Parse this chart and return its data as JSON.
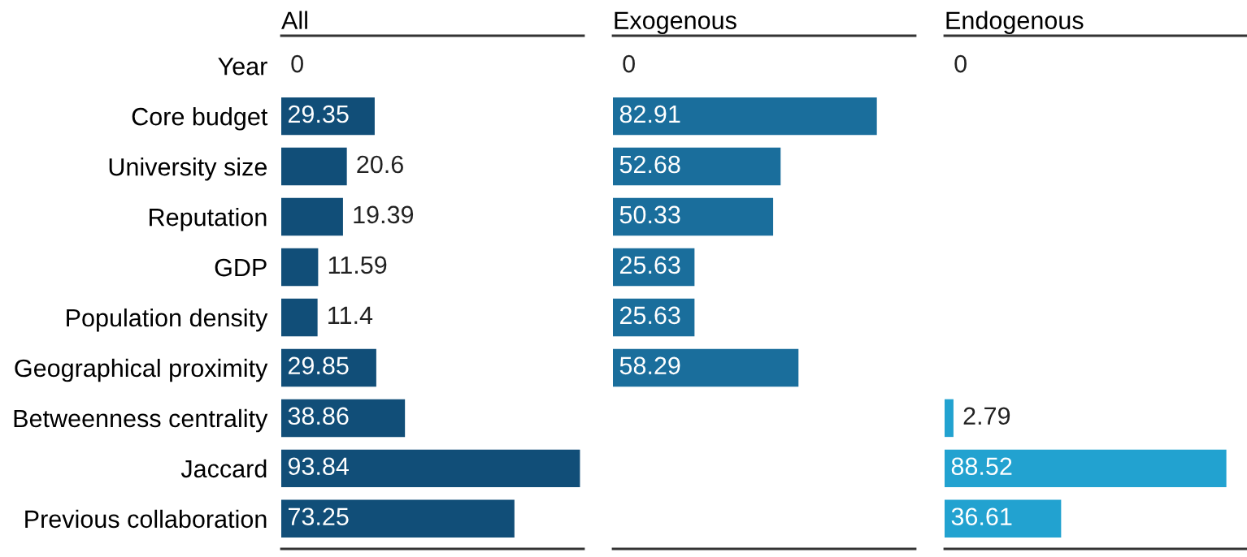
{
  "chart_data": [
    {
      "type": "bar",
      "orientation": "horizontal",
      "title": "All",
      "categories": [
        "Year",
        "Core budget",
        "University size",
        "Reputation",
        "GDP",
        "Population density",
        "Geographical proximity",
        "Betweenness centrality",
        "Jaccard",
        "Previous collaboration"
      ],
      "values": [
        0,
        29.35,
        20.6,
        19.39,
        11.59,
        11.4,
        29.85,
        38.86,
        93.84,
        73.25
      ],
      "color": "#114e78",
      "xlim": [
        0,
        95
      ],
      "data_labels": true,
      "tick_labels": "y",
      "grid": false,
      "legend": false
    },
    {
      "type": "bar",
      "orientation": "horizontal",
      "title": "Exogenous",
      "categories": [
        null,
        null,
        null,
        null,
        null,
        null,
        null,
        null,
        null,
        null
      ],
      "values": [
        0,
        82.91,
        52.68,
        50.33,
        25.63,
        25.63,
        58.29,
        null,
        null,
        null
      ],
      "color": "#1a6e9c",
      "xlim": [
        0,
        95
      ],
      "data_labels": true,
      "tick_labels": false,
      "grid": false,
      "legend": false
    },
    {
      "type": "bar",
      "orientation": "horizontal",
      "title": "Endogenous",
      "categories": [
        null,
        null,
        null,
        null,
        null,
        null,
        null,
        null,
        null,
        null
      ],
      "values": [
        0,
        null,
        null,
        null,
        null,
        null,
        null,
        2.79,
        88.52,
        36.61
      ],
      "color": "#22a2d0",
      "xlim": [
        0,
        95
      ],
      "data_labels": true,
      "tick_labels": false,
      "grid": false,
      "legend": false
    }
  ]
}
